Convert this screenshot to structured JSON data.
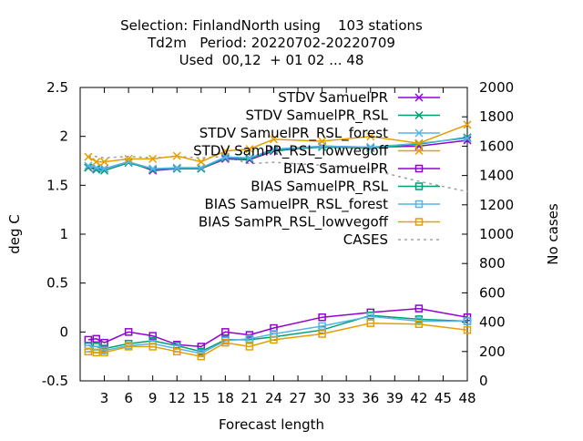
{
  "chart_data": {
    "type": "line",
    "title_lines": [
      "Selection: FinlandNorth using    103 stations",
      "Td2m   Period: 20220702-20220709",
      "Used  00,12  + 01 02 ... 48"
    ],
    "xlabel": "Forecast length",
    "ylabel": "deg C",
    "y2label": "No cases",
    "xlim": [
      0,
      48
    ],
    "ylim": [
      -0.5,
      2.5
    ],
    "y2lim": [
      0,
      2000
    ],
    "x_ticks": [
      "3",
      "6",
      "9",
      "12",
      "15",
      "18",
      "21",
      "24",
      "27",
      "30",
      "33",
      "36",
      "39",
      "42",
      "45",
      "48"
    ],
    "y_ticks": [
      "-0.5",
      "0",
      "0.5",
      "1",
      "1.5",
      "2",
      "2.5"
    ],
    "y2_ticks": [
      "0",
      "200",
      "400",
      "600",
      "800",
      "1000",
      "1200",
      "1400",
      "1600",
      "1800",
      "2000"
    ],
    "grid": false,
    "legend_position": "top-right",
    "colors": {
      "purple": "#9400d3",
      "teal": "#009e73",
      "skyblue": "#56b4e9",
      "orange": "#e69f00",
      "gray": "#a0a0a0"
    },
    "series": [
      {
        "name": "STDV SamuelPR",
        "kind": "stdv",
        "marker": "x",
        "color": "#9400d3",
        "x": [
          1,
          2,
          3,
          6,
          9,
          12,
          15,
          18,
          21,
          24,
          30,
          36,
          42,
          48
        ],
        "values": [
          1.68,
          1.67,
          1.67,
          1.74,
          1.65,
          1.67,
          1.67,
          1.77,
          1.76,
          1.85,
          1.9,
          1.89,
          1.9,
          1.96
        ]
      },
      {
        "name": "STDV SamuelPR_RSL",
        "kind": "stdv",
        "marker": "x",
        "color": "#009e73",
        "x": [
          1,
          2,
          3,
          6,
          9,
          12,
          15,
          18,
          21,
          24,
          30,
          36,
          42,
          48
        ],
        "values": [
          1.68,
          1.66,
          1.65,
          1.73,
          1.66,
          1.67,
          1.67,
          1.78,
          1.77,
          1.86,
          1.89,
          1.88,
          1.92,
          1.99
        ]
      },
      {
        "name": "STDV SamuelPR_RSL_forest",
        "kind": "stdv",
        "marker": "x",
        "color": "#56b4e9",
        "x": [
          1,
          2,
          3,
          6,
          9,
          12,
          15,
          18,
          21,
          24,
          30,
          36,
          42,
          48
        ],
        "values": [
          1.7,
          1.68,
          1.67,
          1.74,
          1.67,
          1.68,
          1.68,
          1.79,
          1.78,
          1.87,
          1.9,
          1.89,
          1.93,
          1.98
        ]
      },
      {
        "name": "STDV SamPR_RSL_lowvegoff",
        "kind": "stdv",
        "marker": "x",
        "color": "#e69f00",
        "x": [
          1,
          2,
          3,
          6,
          9,
          12,
          15,
          18,
          21,
          24,
          30,
          36,
          42,
          48
        ],
        "values": [
          1.79,
          1.74,
          1.74,
          1.77,
          1.77,
          1.8,
          1.74,
          1.85,
          1.87,
          1.97,
          1.95,
          2.0,
          1.93,
          2.12
        ]
      },
      {
        "name": "BIAS SamuelPR",
        "kind": "bias",
        "marker": "square",
        "color": "#9400d3",
        "x": [
          1,
          2,
          3,
          6,
          9,
          12,
          15,
          18,
          21,
          24,
          30,
          36,
          42,
          48
        ],
        "values": [
          -0.08,
          -0.07,
          -0.11,
          0.0,
          -0.04,
          -0.13,
          -0.15,
          0.0,
          -0.03,
          0.04,
          0.15,
          0.2,
          0.24,
          0.15
        ]
      },
      {
        "name": "BIAS SamuelPR_RSL",
        "kind": "bias",
        "marker": "square",
        "color": "#009e73",
        "x": [
          1,
          2,
          3,
          6,
          9,
          12,
          15,
          18,
          21,
          24,
          30,
          36,
          42,
          48
        ],
        "values": [
          -0.14,
          -0.15,
          -0.17,
          -0.12,
          -0.09,
          -0.14,
          -0.2,
          -0.08,
          -0.08,
          -0.05,
          0.02,
          0.17,
          0.13,
          0.11
        ]
      },
      {
        "name": "BIAS SamuelPR_RSL_forest",
        "kind": "bias",
        "marker": "square",
        "color": "#56b4e9",
        "x": [
          1,
          2,
          3,
          6,
          9,
          12,
          15,
          18,
          21,
          24,
          30,
          36,
          42,
          48
        ],
        "values": [
          -0.17,
          -0.18,
          -0.19,
          -0.14,
          -0.12,
          -0.17,
          -0.22,
          -0.09,
          -0.07,
          -0.02,
          0.06,
          0.16,
          0.11,
          0.11
        ]
      },
      {
        "name": "BIAS SamPR_RSL_lowvegoff",
        "kind": "bias",
        "marker": "square",
        "color": "#e69f00",
        "x": [
          1,
          2,
          3,
          6,
          9,
          12,
          15,
          18,
          21,
          24,
          30,
          36,
          42,
          48
        ],
        "values": [
          -0.2,
          -0.21,
          -0.21,
          -0.15,
          -0.15,
          -0.2,
          -0.25,
          -0.11,
          -0.15,
          -0.08,
          -0.02,
          0.09,
          0.08,
          0.02
        ]
      },
      {
        "name": "CASES",
        "kind": "cases",
        "axis": "y2",
        "color": "#a0a0a0",
        "x": [
          1,
          2,
          3,
          6,
          9,
          12,
          15,
          18,
          21,
          24,
          30,
          36,
          42,
          48
        ],
        "values": [
          1530,
          1530,
          1520,
          1530,
          1520,
          1530,
          1520,
          1530,
          1480,
          1490,
          1470,
          1440,
          1360,
          1290
        ]
      }
    ],
    "legend_entries": [
      {
        "label": "STDV SamuelPR",
        "series": 0
      },
      {
        "label": "STDV SamuelPR_RSL",
        "series": 1
      },
      {
        "label": "STDV SamuelPR_RSL_forest",
        "series": 2
      },
      {
        "label": "STDV SamPR_RSL_lowvegoff",
        "series": 3
      },
      {
        "label": "BIAS SamuelPR",
        "series": 4
      },
      {
        "label": "BIAS SamuelPR_RSL",
        "series": 5
      },
      {
        "label": "BIAS SamuelPR_RSL_forest",
        "series": 6
      },
      {
        "label": "BIAS SamPR_RSL_lowvegoff",
        "series": 7
      },
      {
        "label": "CASES",
        "series": 8
      }
    ]
  }
}
